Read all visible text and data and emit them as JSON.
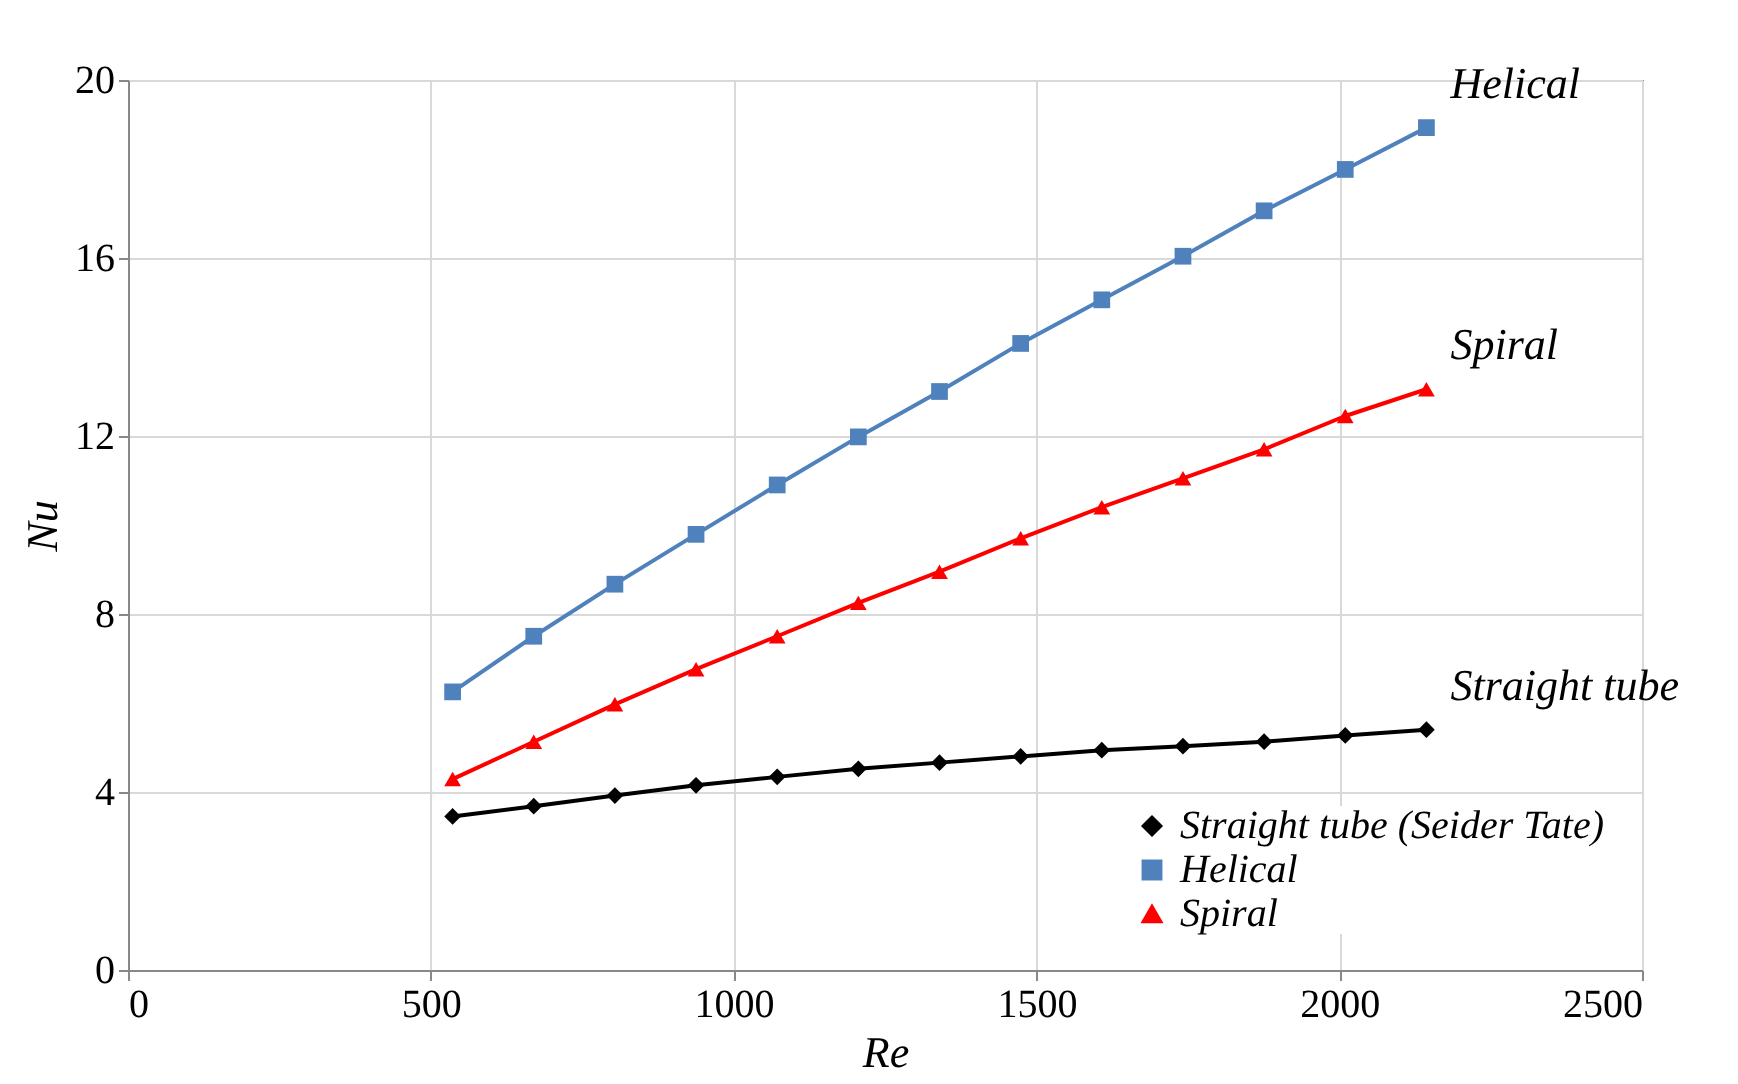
{
  "chart_data": {
    "type": "line",
    "xlabel": "Re",
    "ylabel": "Nu",
    "x": [
      536,
      670,
      804,
      938,
      1072,
      1206,
      1340,
      1474,
      1608,
      1742,
      1876,
      2010,
      2144
    ],
    "series": [
      {
        "name": "Straight tube (Seider Tate)",
        "color": "#000000",
        "marker": "diamond",
        "values": [
          3.45,
          3.68,
          3.92,
          4.15,
          4.34,
          4.52,
          4.66,
          4.8,
          4.94,
          5.03,
          5.13,
          5.27,
          5.4
        ]
      },
      {
        "name": "Helical",
        "color": "#4f81bd",
        "marker": "square",
        "values": [
          6.25,
          7.5,
          8.67,
          9.79,
          10.9,
          11.98,
          13.0,
          14.08,
          15.06,
          16.04,
          17.06,
          17.99,
          18.93
        ]
      },
      {
        "name": "Spiral",
        "color": "#ff0000",
        "marker": "triangle",
        "values": [
          4.29,
          5.13,
          5.97,
          6.76,
          7.5,
          8.25,
          8.95,
          9.7,
          10.4,
          11.05,
          11.7,
          12.45,
          13.05
        ]
      }
    ],
    "annotations": [
      "Straight tube",
      "Helical",
      "Spiral"
    ],
    "xlim": [
      0,
      2500
    ],
    "xticks": [
      0,
      500,
      1000,
      1500,
      2000,
      2500
    ],
    "ylim": [
      0,
      20
    ],
    "yticks": [
      0,
      4,
      8,
      12,
      16,
      20
    ],
    "grid": true,
    "legend": "bottom right"
  }
}
